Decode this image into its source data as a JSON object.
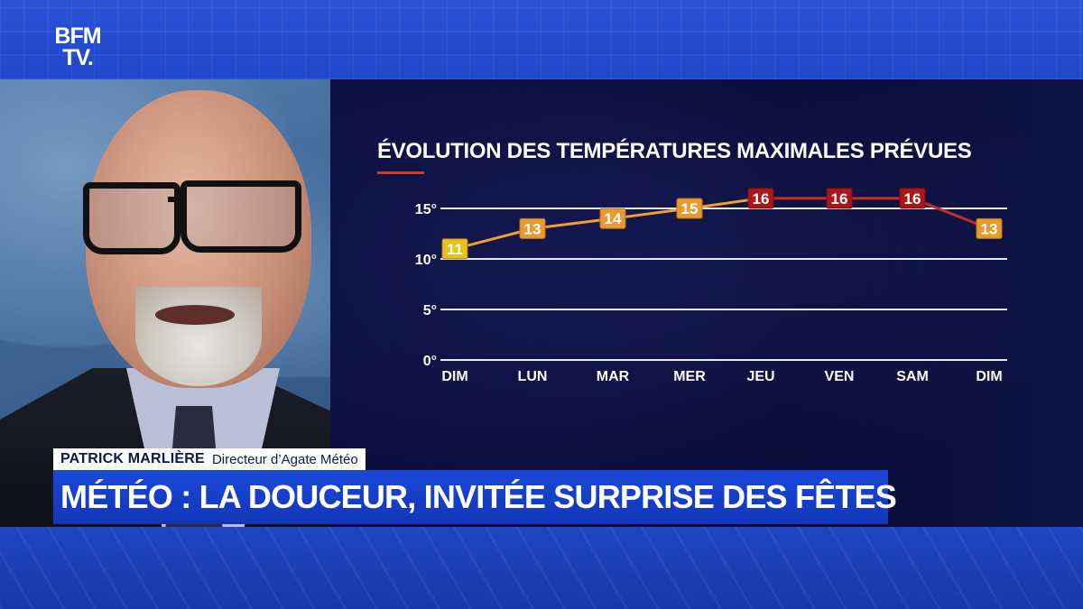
{
  "channel": {
    "logo_line1": "BFM",
    "logo_line2": "TV."
  },
  "lower_third": {
    "speaker_name": "PATRICK MARLIÈRE",
    "speaker_role": "Directeur d’Agate Météo",
    "headline": "MÉTÉO : LA DOUCEUR, INVITÉE SURPRISE DES FÊTES"
  },
  "colors": {
    "cool": "#e8c21c",
    "warm": "#e89a2e",
    "hot": "#a81818",
    "line_warm": "#f0a030",
    "line_hot": "#c23020",
    "title_accent": "#d43a30"
  },
  "chart_data": {
    "type": "line",
    "title": "ÉVOLUTION DES TEMPÉRATURES MAXIMALES PRÉVUES",
    "categories": [
      "DIM",
      "LUN",
      "MAR",
      "MER",
      "JEU",
      "VEN",
      "SAM",
      "DIM"
    ],
    "values": [
      11,
      13,
      14,
      15,
      16,
      16,
      16,
      13
    ],
    "data_labels": [
      "11",
      "13",
      "14",
      "15",
      "16",
      "16",
      "16",
      "13"
    ],
    "y_ticks": [
      0,
      5,
      10,
      15
    ],
    "y_tick_labels": [
      "0°",
      "5°",
      "10°",
      "15°"
    ],
    "ylim": [
      0,
      15
    ],
    "grid": true,
    "xlabel": "",
    "ylabel": ""
  }
}
